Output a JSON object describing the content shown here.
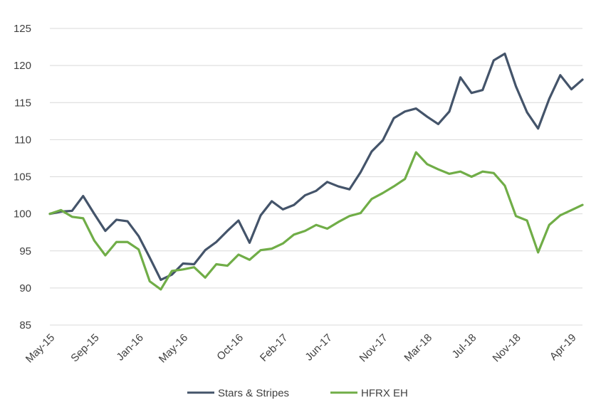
{
  "chart_data": {
    "type": "line",
    "title": "",
    "xlabel": "",
    "ylabel": "",
    "ylim": [
      85,
      125
    ],
    "yticks": [
      "85",
      "90",
      "95",
      "100",
      "105",
      "110",
      "115",
      "120",
      "125"
    ],
    "xtick_labels": [
      "May-15",
      "Sep-15",
      "Jan-16",
      "May-16",
      "Oct-16",
      "Feb-17",
      "Jun-17",
      "Nov-17",
      "Mar-18",
      "Jul-18",
      "Nov-18",
      "Apr-19"
    ],
    "xtick_index": [
      0,
      4,
      8,
      12,
      17,
      21,
      25,
      30,
      34,
      38,
      42,
      47
    ],
    "grid": "horizontal",
    "legend_position": "bottom",
    "series": [
      {
        "name": "Stars & Stripes",
        "color": "#44546a",
        "values": [
          100,
          100.3,
          100.4,
          102.4,
          100.0,
          97.7,
          99.2,
          99.0,
          97.0,
          94.1,
          91.1,
          91.8,
          93.3,
          93.2,
          95.1,
          96.2,
          97.7,
          99.1,
          96.1,
          99.8,
          101.7,
          100.6,
          101.2,
          102.5,
          103.1,
          104.3,
          103.7,
          103.3,
          105.6,
          108.4,
          109.9,
          112.9,
          113.8,
          114.2,
          113.1,
          112.1,
          113.8,
          118.4,
          116.3,
          116.7,
          120.7,
          121.6,
          117.2,
          113.7,
          111.5,
          115.5,
          118.7,
          116.8,
          118.1
        ]
      },
      {
        "name": "HFRX EH",
        "color": "#70ad47",
        "values": [
          100,
          100.5,
          99.6,
          99.4,
          96.4,
          94.4,
          96.2,
          96.2,
          95.2,
          90.9,
          89.8,
          92.3,
          92.5,
          92.8,
          91.4,
          93.2,
          93.0,
          94.5,
          93.8,
          95.1,
          95.3,
          96.0,
          97.2,
          97.7,
          98.5,
          98.0,
          98.9,
          99.7,
          100.1,
          102.0,
          102.8,
          103.7,
          104.7,
          108.3,
          106.7,
          106.0,
          105.4,
          105.7,
          105.0,
          105.7,
          105.5,
          103.8,
          99.7,
          99.1,
          94.8,
          98.5,
          99.8,
          100.5,
          101.2
        ]
      }
    ]
  }
}
